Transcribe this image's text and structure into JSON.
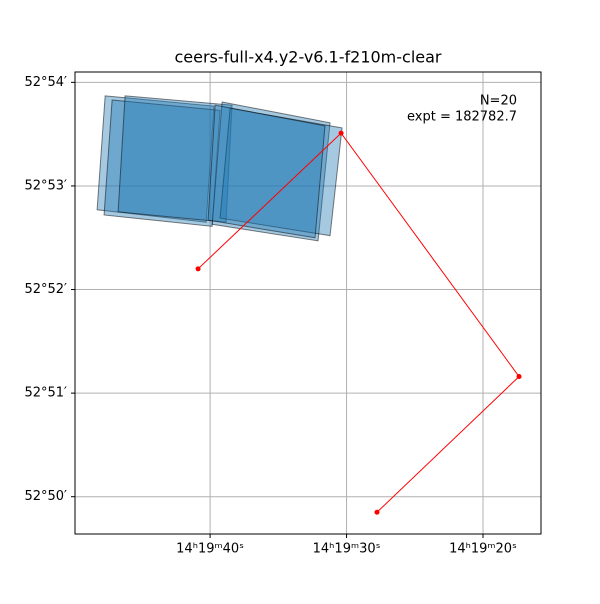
{
  "chart_data": {
    "type": "footprint",
    "title": "ceers-full-x4.y2-v6.1-f210m-clear",
    "annotations": [
      "N=20",
      "expt = 182782.7"
    ],
    "xlim": [
      49.9,
      15.75
    ],
    "ylim": [
      49.64,
      54.1
    ],
    "xticks": [
      {
        "value": 40,
        "label": "14ʰ19ᵐ40ˢ"
      },
      {
        "value": 30,
        "label": "14ʰ19ᵐ30ˢ"
      },
      {
        "value": 20,
        "label": "14ʰ19ᵐ20ˢ"
      }
    ],
    "yticks": [
      {
        "value": 54,
        "label": "52°54′"
      },
      {
        "value": 53,
        "label": "52°53′"
      },
      {
        "value": 52,
        "label": "52°52′"
      },
      {
        "value": 51,
        "label": "52°51′"
      },
      {
        "value": 50,
        "label": "52°50′"
      }
    ],
    "grid": true,
    "footprint_color": "#1f77b4",
    "footprints": [
      {
        "ra": [
          47.69,
          39.71,
          40.29,
          48.28
        ],
        "dec": [
          53.87,
          53.77,
          52.65,
          52.77
        ]
      },
      {
        "ra": [
          47.18,
          39.27,
          39.85,
          47.77
        ],
        "dec": [
          53.83,
          53.73,
          52.61,
          52.72
        ]
      },
      {
        "ra": [
          46.23,
          38.39,
          38.83,
          46.74
        ],
        "dec": [
          53.87,
          53.78,
          52.65,
          52.75
        ]
      },
      {
        "ra": [
          39.12,
          31.21,
          32.09,
          39.85
        ],
        "dec": [
          53.81,
          53.61,
          52.47,
          52.63
        ]
      },
      {
        "ra": [
          38.53,
          30.33,
          31.21,
          39.27
        ],
        "dec": [
          53.75,
          53.56,
          52.52,
          52.69
        ]
      },
      {
        "ra": [
          39.63,
          31.58,
          32.31,
          40.15
        ],
        "dec": [
          53.78,
          53.58,
          52.5,
          52.67
        ]
      }
    ],
    "path": {
      "color": "#ff0000",
      "x": [
        40.88,
        30.4,
        17.36,
        27.77
      ],
      "y": [
        52.2,
        53.51,
        51.16,
        49.85
      ]
    }
  }
}
